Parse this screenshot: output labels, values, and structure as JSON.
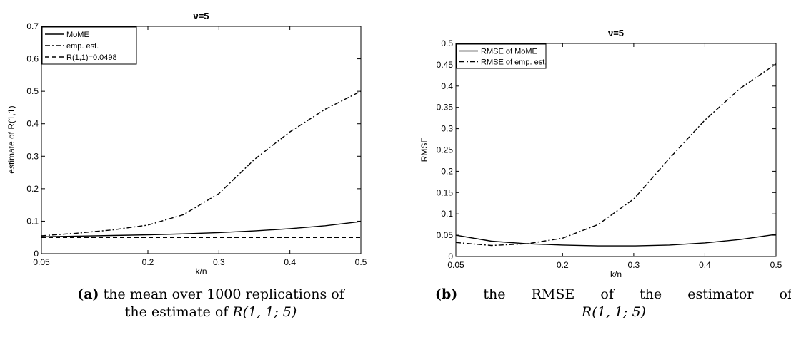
{
  "chart_data": [
    {
      "type": "line",
      "title": "ν=5",
      "xlabel": "k/n",
      "ylabel": "estimate of R(1,1)",
      "xlim": [
        0.05,
        0.5
      ],
      "ylim": [
        0,
        0.7
      ],
      "xticks": [
        0.05,
        0.2,
        0.3,
        0.4,
        0.5
      ],
      "xtick_labels": [
        "0.05",
        "0.2",
        "0.3",
        "0.4",
        "0.5"
      ],
      "yticks": [
        0,
        0.1,
        0.2,
        0.3,
        0.4,
        0.5,
        0.6,
        0.7
      ],
      "ytick_labels": [
        "0",
        "0.1",
        "0.2",
        "0.3",
        "0.4",
        "0.5",
        "0.6",
        "0.7"
      ],
      "legend_position": "top-left",
      "grid": false,
      "series": [
        {
          "name": "MoME",
          "style": "solid",
          "x": [
            0.05,
            0.1,
            0.15,
            0.2,
            0.25,
            0.3,
            0.35,
            0.4,
            0.45,
            0.5
          ],
          "y": [
            0.052,
            0.054,
            0.056,
            0.058,
            0.061,
            0.065,
            0.07,
            0.077,
            0.086,
            0.099
          ]
        },
        {
          "name": "emp. est.",
          "style": "dashdot",
          "x": [
            0.05,
            0.1,
            0.15,
            0.2,
            0.25,
            0.3,
            0.35,
            0.4,
            0.45,
            0.5
          ],
          "y": [
            0.055,
            0.063,
            0.073,
            0.088,
            0.12,
            0.185,
            0.29,
            0.375,
            0.445,
            0.5
          ]
        },
        {
          "name": "R(1,1)=0.0498",
          "style": "dashed",
          "x": [
            0.05,
            0.5
          ],
          "y": [
            0.0498,
            0.0498
          ]
        }
      ]
    },
    {
      "type": "line",
      "title": "ν=5",
      "xlabel": "k/n",
      "ylabel": "RMSE",
      "xlim": [
        0.05,
        0.5
      ],
      "ylim": [
        0,
        0.5
      ],
      "xticks": [
        0.05,
        0.2,
        0.3,
        0.4,
        0.5
      ],
      "xtick_labels": [
        "0.05",
        "0.2",
        "0.3",
        "0.4",
        "0.5"
      ],
      "yticks": [
        0,
        0.05,
        0.1,
        0.15,
        0.2,
        0.25,
        0.3,
        0.35,
        0.4,
        0.45,
        0.5
      ],
      "ytick_labels": [
        "0",
        "0.05",
        "0.1",
        "0.15",
        "0.2",
        "0.25",
        "0.3",
        "0.35",
        "0.4",
        "0.45",
        "0.5"
      ],
      "legend_position": "top-left",
      "grid": false,
      "series": [
        {
          "name": "RMSE of MoME",
          "style": "solid",
          "x": [
            0.05,
            0.1,
            0.15,
            0.2,
            0.25,
            0.3,
            0.35,
            0.4,
            0.45,
            0.5
          ],
          "y": [
            0.05,
            0.036,
            0.03,
            0.027,
            0.025,
            0.025,
            0.027,
            0.032,
            0.04,
            0.052
          ]
        },
        {
          "name": "RMSE of emp. est.",
          "style": "dashdot",
          "x": [
            0.05,
            0.1,
            0.15,
            0.2,
            0.25,
            0.3,
            0.35,
            0.4,
            0.45,
            0.5
          ],
          "y": [
            0.033,
            0.026,
            0.03,
            0.043,
            0.075,
            0.135,
            0.23,
            0.32,
            0.395,
            0.452
          ]
        }
      ]
    }
  ],
  "captions": [
    {
      "label": "(a)",
      "line1_text": "the mean over 1000 replications of",
      "line2_text": "the estimate of ",
      "line2_math": "R(1, 1; 5)"
    },
    {
      "label": "(b)",
      "line1_text": "the RMSE of the estimator of",
      "line2_text": "",
      "line2_math": "R(1, 1; 5)"
    }
  ]
}
